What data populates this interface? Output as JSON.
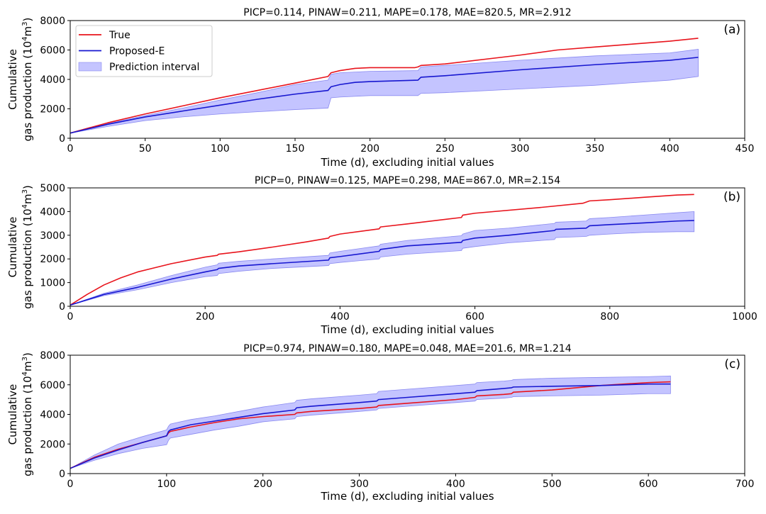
{
  "figure": {
    "colors": {
      "true_line": "#e8141c",
      "pred_line": "#1717d0",
      "band_fill": "#c4c4ff",
      "band_edge": "#8a8af0",
      "axes": "#000000"
    }
  },
  "legend": {
    "placement": "upper-left of panel (a)",
    "entries": [
      "True",
      "Proposed-E",
      "Prediction interval"
    ]
  },
  "chart_data": [
    {
      "type": "line",
      "panel_label": "(a)",
      "title": "PICP=0.114, PINAW=0.211, MAPE=0.178, MAE=820.5, MR=2.912",
      "xlabel": "Time (d), excluding initial values",
      "ylabel_line1": "Cumulative",
      "ylabel_line2_pre": "gas production (10",
      "ylabel_sup1": "4",
      "ylabel_mid": "m",
      "ylabel_sup2": "3",
      "ylabel_post": ")",
      "xlim": [
        0,
        450
      ],
      "ylim": [
        0,
        8000
      ],
      "xticks": [
        0,
        50,
        100,
        150,
        200,
        250,
        300,
        350,
        400,
        450
      ],
      "yticks": [
        0,
        2000,
        4000,
        6000,
        8000
      ],
      "grid": false,
      "series": [
        {
          "name": "True",
          "x": [
            0,
            25,
            50,
            75,
            100,
            125,
            150,
            172,
            174,
            180,
            190,
            200,
            230,
            232,
            234,
            250,
            300,
            325,
            350,
            375,
            400,
            419
          ],
          "y": [
            350,
            1050,
            1650,
            2200,
            2750,
            3250,
            3750,
            4200,
            4450,
            4600,
            4750,
            4800,
            4800,
            4850,
            4950,
            5050,
            5650,
            6000,
            6200,
            6400,
            6600,
            6800
          ]
        },
        {
          "name": "Proposed-E",
          "x": [
            0,
            25,
            50,
            75,
            100,
            125,
            150,
            172,
            174,
            180,
            190,
            200,
            232,
            234,
            250,
            300,
            350,
            400,
            419
          ],
          "y": [
            350,
            950,
            1450,
            1850,
            2250,
            2650,
            3000,
            3250,
            3500,
            3650,
            3800,
            3850,
            3950,
            4150,
            4250,
            4650,
            5000,
            5300,
            5500
          ]
        },
        {
          "name": "Prediction interval",
          "x": [
            0,
            25,
            50,
            75,
            100,
            125,
            150,
            172,
            174,
            180,
            190,
            200,
            232,
            234,
            250,
            300,
            350,
            400,
            419
          ],
          "lower": [
            350,
            800,
            1200,
            1450,
            1650,
            1800,
            1950,
            2050,
            2750,
            2800,
            2850,
            2900,
            2900,
            3050,
            3100,
            3350,
            3600,
            3950,
            4200
          ],
          "upper": [
            350,
            1000,
            1550,
            2050,
            2600,
            3100,
            3650,
            3950,
            4350,
            4450,
            4500,
            4550,
            4600,
            4850,
            4950,
            5300,
            5600,
            5800,
            6050
          ]
        }
      ]
    },
    {
      "type": "line",
      "panel_label": "(b)",
      "title": "PICP=0, PINAW=0.125, MAPE=0.298, MAE=867.0, MR=2.154",
      "xlabel": "Time (d), excluding initial values",
      "ylabel_line1": "Cumulative",
      "ylabel_line2_pre": "gas production (10",
      "ylabel_sup1": "4",
      "ylabel_mid": "m",
      "ylabel_sup2": "3",
      "ylabel_post": ")",
      "xlim": [
        0,
        1000
      ],
      "ylim": [
        0,
        5000
      ],
      "xticks": [
        0,
        200,
        400,
        600,
        800,
        1000
      ],
      "yticks": [
        0,
        1000,
        2000,
        3000,
        4000,
        5000
      ],
      "grid": false,
      "series": [
        {
          "name": "True",
          "x": [
            0,
            25,
            50,
            75,
            100,
            150,
            200,
            218,
            220,
            250,
            300,
            350,
            383,
            385,
            400,
            458,
            460,
            500,
            580,
            582,
            600,
            700,
            760,
            770,
            800,
            850,
            900,
            925
          ],
          "y": [
            50,
            500,
            900,
            1200,
            1450,
            1800,
            2080,
            2150,
            2200,
            2300,
            2500,
            2720,
            2880,
            2950,
            3050,
            3270,
            3350,
            3480,
            3750,
            3850,
            3930,
            4180,
            4350,
            4450,
            4500,
            4600,
            4700,
            4720
          ]
        },
        {
          "name": "Proposed-E",
          "x": [
            0,
            50,
            100,
            150,
            200,
            218,
            220,
            250,
            300,
            383,
            385,
            400,
            458,
            460,
            500,
            580,
            582,
            600,
            650,
            718,
            720,
            765,
            770,
            800,
            850,
            900,
            925
          ],
          "y": [
            50,
            500,
            800,
            1150,
            1450,
            1550,
            1600,
            1700,
            1800,
            1950,
            2050,
            2100,
            2320,
            2400,
            2550,
            2700,
            2780,
            2880,
            3000,
            3200,
            3250,
            3300,
            3400,
            3450,
            3520,
            3600,
            3620
          ]
        },
        {
          "name": "Prediction interval",
          "x": [
            0,
            50,
            100,
            150,
            200,
            218,
            220,
            250,
            300,
            383,
            385,
            400,
            458,
            460,
            500,
            580,
            582,
            600,
            650,
            718,
            720,
            765,
            770,
            800,
            850,
            900,
            925
          ],
          "lower": [
            50,
            450,
            700,
            1000,
            1250,
            1300,
            1380,
            1480,
            1600,
            1720,
            1800,
            1850,
            2000,
            2080,
            2200,
            2350,
            2450,
            2520,
            2680,
            2820,
            2900,
            2950,
            3000,
            3050,
            3120,
            3150,
            3150
          ],
          "upper": [
            50,
            550,
            900,
            1300,
            1650,
            1750,
            1820,
            1900,
            2000,
            2150,
            2250,
            2320,
            2550,
            2620,
            2780,
            2980,
            3050,
            3200,
            3300,
            3500,
            3550,
            3600,
            3700,
            3750,
            3850,
            3950,
            4000
          ]
        }
      ]
    },
    {
      "type": "line",
      "panel_label": "(c)",
      "title": "PICP=0.974, PINAW=0.180, MAPE=0.048, MAE=201.6, MR=1.214",
      "xlabel": "Time (d), excluding initial values",
      "ylabel_line1": "Cumulative",
      "ylabel_line2_pre": "gas production (10",
      "ylabel_sup1": "4",
      "ylabel_mid": "m",
      "ylabel_sup2": "3",
      "ylabel_post": ")",
      "xlim": [
        0,
        700
      ],
      "ylim": [
        0,
        8000
      ],
      "xticks": [
        0,
        100,
        200,
        300,
        400,
        500,
        600,
        700
      ],
      "yticks": [
        0,
        2000,
        4000,
        6000,
        8000
      ],
      "grid": false,
      "series": [
        {
          "name": "True",
          "x": [
            0,
            25,
            50,
            75,
            100,
            102,
            104,
            125,
            150,
            175,
            200,
            233,
            235,
            250,
            300,
            318,
            320,
            350,
            400,
            420,
            422,
            450,
            458,
            460,
            500,
            550,
            600,
            623
          ],
          "y": [
            350,
            1100,
            1650,
            2100,
            2550,
            2750,
            2850,
            3150,
            3450,
            3700,
            3850,
            4000,
            4100,
            4200,
            4400,
            4500,
            4600,
            4750,
            5000,
            5150,
            5250,
            5350,
            5400,
            5500,
            5650,
            5950,
            6150,
            6200
          ]
        },
        {
          "name": "Proposed-E",
          "x": [
            0,
            25,
            50,
            75,
            100,
            102,
            104,
            125,
            150,
            175,
            200,
            233,
            235,
            250,
            300,
            318,
            320,
            350,
            400,
            420,
            422,
            450,
            458,
            460,
            500,
            550,
            600,
            623
          ],
          "y": [
            350,
            1050,
            1600,
            2100,
            2550,
            2850,
            2950,
            3300,
            3550,
            3800,
            4050,
            4300,
            4450,
            4550,
            4800,
            4900,
            5000,
            5150,
            5400,
            5500,
            5600,
            5750,
            5800,
            5850,
            5900,
            5950,
            6050,
            6050
          ]
        },
        {
          "name": "Prediction interval",
          "x": [
            0,
            25,
            50,
            75,
            100,
            102,
            104,
            125,
            150,
            175,
            200,
            233,
            235,
            250,
            300,
            318,
            320,
            350,
            400,
            420,
            422,
            450,
            458,
            460,
            500,
            550,
            600,
            623
          ],
          "lower": [
            350,
            900,
            1350,
            1700,
            1950,
            2250,
            2400,
            2650,
            2950,
            3200,
            3500,
            3700,
            3850,
            3950,
            4200,
            4300,
            4400,
            4550,
            4800,
            4900,
            5000,
            5100,
            5150,
            5200,
            5250,
            5300,
            5400,
            5400
          ],
          "upper": [
            350,
            1250,
            2000,
            2500,
            2950,
            3200,
            3350,
            3650,
            3900,
            4200,
            4500,
            4800,
            4950,
            5050,
            5300,
            5400,
            5550,
            5700,
            5950,
            6050,
            6150,
            6250,
            6300,
            6350,
            6450,
            6500,
            6550,
            6600
          ]
        }
      ]
    }
  ]
}
